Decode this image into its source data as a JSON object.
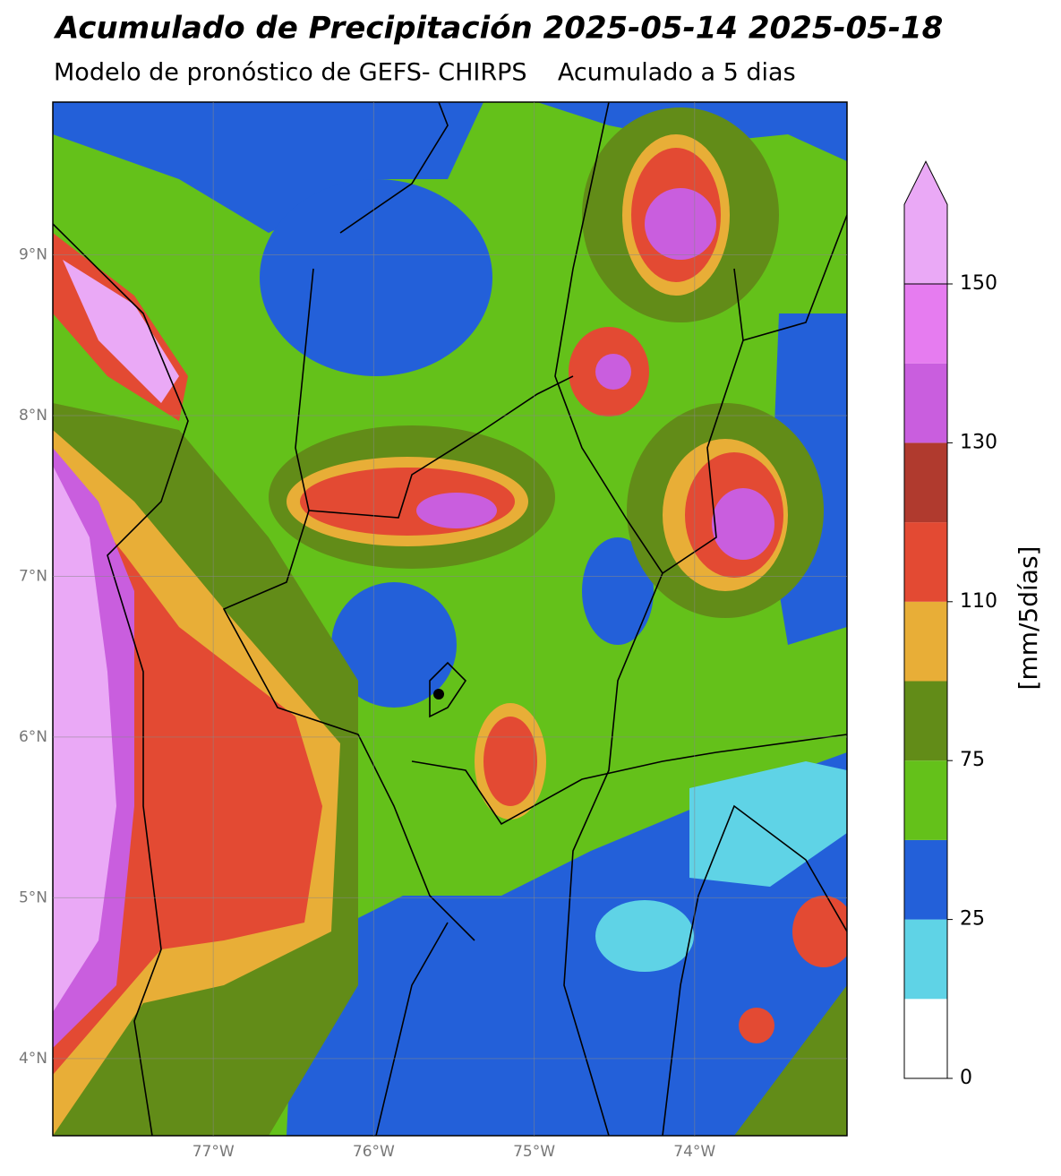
{
  "chart_data": {
    "type": "map",
    "title": "Acumulado de Precipitación 2025-05-14 2025-05-18",
    "subtitle": "Modelo de pronóstico de GEFS- CHIRPS    Acumulado a 5 dias",
    "xlim": [
      -78,
      -73.05
    ],
    "ylim": [
      3.52,
      9.95
    ],
    "xticks": [
      {
        "value": -77,
        "label": "77°W"
      },
      {
        "value": -76,
        "label": "76°W"
      },
      {
        "value": -75,
        "label": "75°W"
      },
      {
        "value": -74,
        "label": "74°W"
      }
    ],
    "yticks": [
      {
        "value": 4,
        "label": "4°N"
      },
      {
        "value": 5,
        "label": "5°N"
      },
      {
        "value": 6,
        "label": "6°N"
      },
      {
        "value": 7,
        "label": "7°N"
      },
      {
        "value": 8,
        "label": "8°N"
      },
      {
        "value": 9,
        "label": "9°N"
      }
    ],
    "grid": true,
    "colorbar": {
      "label": "[mm/5días]",
      "ticks": [
        0,
        25,
        75,
        110,
        130,
        150
      ],
      "colors": [
        "#ffffff",
        "#5fd3e6",
        "#2360d9",
        "#64c11a",
        "#628c18",
        "#e8ae37",
        "#e34a33",
        "#b03a2e",
        "#c95ede",
        "#e67cf0",
        "#eaa9f6"
      ]
    }
  }
}
